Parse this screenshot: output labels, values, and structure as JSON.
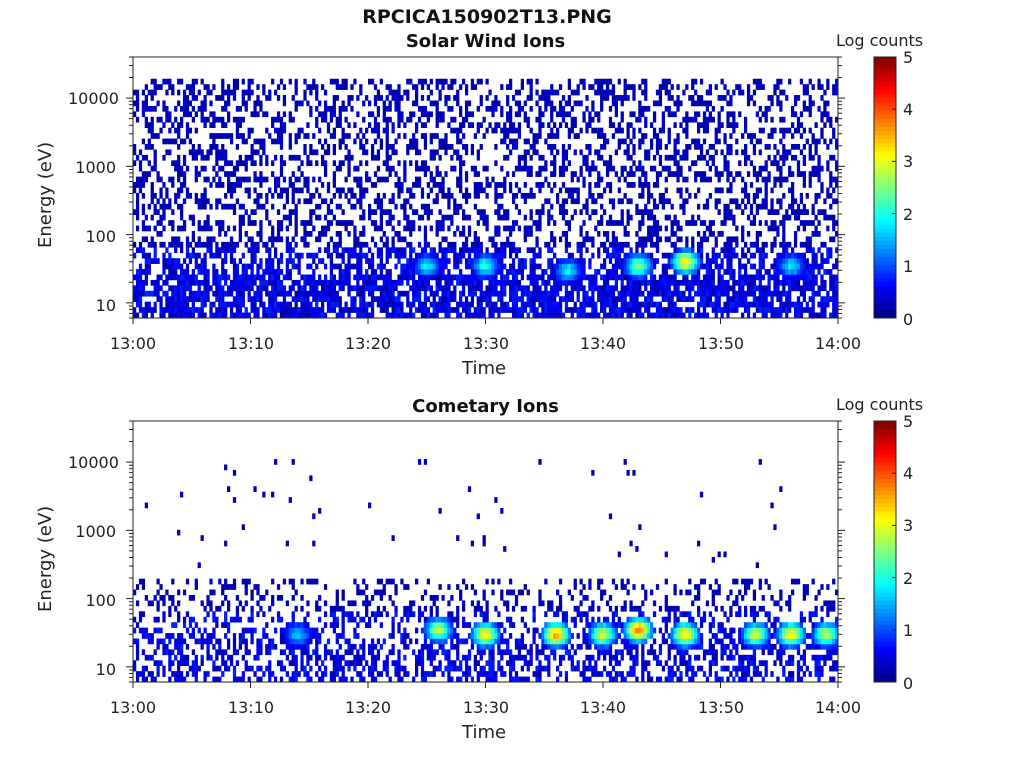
{
  "figure": {
    "title": "RPCICA150902T13.PNG"
  },
  "chart_data": [
    {
      "type": "heatmap",
      "title": "Solar Wind Ions",
      "xlabel": "Time",
      "ylabel": "Energy (eV)",
      "x_ticks": [
        "13:00",
        "13:10",
        "13:20",
        "13:30",
        "13:40",
        "13:50",
        "14:00"
      ],
      "xlim": [
        "13:00",
        "14:00"
      ],
      "y_scale": "log",
      "y_ticks": [
        10,
        100,
        1000,
        10000
      ],
      "y_tick_labels": [
        "10",
        "100",
        "1000",
        "10000"
      ],
      "ylim": [
        6,
        40000
      ],
      "colorbar": {
        "label": "Log counts",
        "range": [
          0,
          5
        ],
        "ticks": [
          "0",
          "1",
          "2",
          "3",
          "4",
          "5"
        ],
        "colormap": "jet"
      },
      "hotspots": [
        {
          "time": "13:25",
          "energy_ev": 35,
          "log_counts": 1.8
        },
        {
          "time": "13:30",
          "energy_ev": 35,
          "log_counts": 2.0
        },
        {
          "time": "13:37",
          "energy_ev": 30,
          "log_counts": 1.8
        },
        {
          "time": "13:43",
          "energy_ev": 35,
          "log_counts": 2.5
        },
        {
          "time": "13:47",
          "energy_ev": 40,
          "log_counts": 3.2
        },
        {
          "time": "13:56",
          "energy_ev": 35,
          "log_counts": 1.7
        }
      ],
      "background": {
        "energy_range_ev": [
          6,
          20000
        ],
        "log_counts": 0.2,
        "occupancy": 0.38
      }
    },
    {
      "type": "heatmap",
      "title": "Cometary Ions",
      "xlabel": "Time",
      "ylabel": "Energy (eV)",
      "x_ticks": [
        "13:00",
        "13:10",
        "13:20",
        "13:30",
        "13:40",
        "13:50",
        "14:00"
      ],
      "xlim": [
        "13:00",
        "14:00"
      ],
      "y_scale": "log",
      "y_ticks": [
        10,
        100,
        1000,
        10000
      ],
      "y_tick_labels": [
        "10",
        "100",
        "1000",
        "10000"
      ],
      "ylim": [
        6,
        40000
      ],
      "colorbar": {
        "label": "Log counts",
        "range": [
          0,
          5
        ],
        "ticks": [
          "0",
          "1",
          "2",
          "3",
          "4",
          "5"
        ],
        "colormap": "jet"
      },
      "hotspots": [
        {
          "time": "13:14",
          "energy_ev": 30,
          "log_counts": 1.6
        },
        {
          "time": "13:26",
          "energy_ev": 35,
          "log_counts": 2.8
        },
        {
          "time": "13:30",
          "energy_ev": 30,
          "log_counts": 3.2
        },
        {
          "time": "13:36",
          "energy_ev": 30,
          "log_counts": 3.6
        },
        {
          "time": "13:40",
          "energy_ev": 30,
          "log_counts": 2.9
        },
        {
          "time": "13:43",
          "energy_ev": 35,
          "log_counts": 3.8
        },
        {
          "time": "13:47",
          "energy_ev": 30,
          "log_counts": 3.3
        },
        {
          "time": "13:53",
          "energy_ev": 30,
          "log_counts": 2.9
        },
        {
          "time": "13:56",
          "energy_ev": 30,
          "log_counts": 3.2
        },
        {
          "time": "13:59",
          "energy_ev": 30,
          "log_counts": 2.8
        }
      ],
      "background": {
        "energy_range_ev": [
          6,
          200
        ],
        "log_counts": 0.2,
        "occupancy": 0.25
      },
      "sparse": {
        "energy_range_ev": [
          300,
          12000
        ],
        "occupancy": 0.012
      }
    }
  ]
}
